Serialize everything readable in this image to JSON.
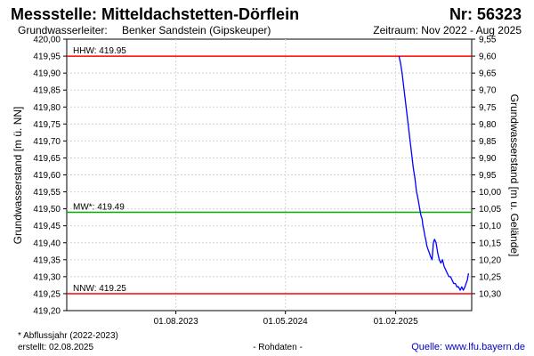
{
  "header": {
    "title": "Messstelle: Mitteldachstetten-Dörflein",
    "number": "Nr: 56323",
    "aquifer_label": "Grundwasserleiter:",
    "aquifer_value": "Benker Sandstein (Gipskeuper)",
    "period": "Zeitraum: Nov 2022 - Aug 2025"
  },
  "footer": {
    "note": "* Abflussjahr (2022-2023)",
    "created": "erstellt:  02.08.2025",
    "raw": "- Rohdaten -",
    "source": "Quelle: www.lfu.bayern.de"
  },
  "chart_data": {
    "type": "line",
    "ylabel": "Grundwasserstand [m ü. NN]",
    "y2label": "Grundwasserstand [m u. Gelände]",
    "x_range": [
      "2022-11-01",
      "2025-08-10"
    ],
    "ylim": [
      419.2,
      420.0
    ],
    "y2lim": [
      10.35,
      9.55
    ],
    "y_ticks": [
      "420,00",
      "419,95",
      "419,90",
      "419,85",
      "419,80",
      "419,75",
      "419,70",
      "419,65",
      "419,60",
      "419,55",
      "419,50",
      "419,45",
      "419,40",
      "419,35",
      "419,30",
      "419,25",
      "419,20"
    ],
    "y2_ticks": [
      "9,55",
      "9,60",
      "9,65",
      "9,70",
      "9,75",
      "9,80",
      "9,85",
      "9,90",
      "9,95",
      "10,00",
      "10,05",
      "10,10",
      "10,15",
      "10,20",
      "10,25",
      "10,30"
    ],
    "x_ticks": [
      {
        "date": "2023-08-01",
        "label": "01.08.2023"
      },
      {
        "date": "2024-05-01",
        "label": "01.05.2024"
      },
      {
        "date": "2025-02-01",
        "label": "01.02.2025"
      }
    ],
    "grid": true,
    "reference_lines": [
      {
        "name": "HHW",
        "label": "HHW: 419.95",
        "value": 419.95,
        "color": "#ff0000"
      },
      {
        "name": "MW",
        "label": "MW*: 419.49",
        "value": 419.49,
        "color": "#00aa00"
      },
      {
        "name": "NNW",
        "label": "NNW: 419.25",
        "value": 419.25,
        "color": "#ff0000"
      }
    ],
    "series": [
      {
        "color": "#0000ff",
        "x": [
          "2025-02-09",
          "2025-02-13",
          "2025-02-17",
          "2025-02-21",
          "2025-02-25",
          "2025-03-01",
          "2025-03-05",
          "2025-03-09",
          "2025-03-13",
          "2025-03-17",
          "2025-03-21",
          "2025-03-23",
          "2025-03-25",
          "2025-03-27",
          "2025-03-30",
          "2025-04-02",
          "2025-04-05",
          "2025-04-08",
          "2025-04-10",
          "2025-04-12",
          "2025-04-15",
          "2025-04-17",
          "2025-04-20",
          "2025-04-23",
          "2025-04-26",
          "2025-04-29",
          "2025-05-03",
          "2025-05-06",
          "2025-05-09",
          "2025-05-13",
          "2025-05-17",
          "2025-05-21",
          "2025-05-25",
          "2025-05-29",
          "2025-06-02",
          "2025-06-06",
          "2025-06-10",
          "2025-06-14",
          "2025-06-18",
          "2025-06-22",
          "2025-06-26",
          "2025-06-30",
          "2025-07-04",
          "2025-07-08",
          "2025-07-12",
          "2025-07-16",
          "2025-07-20",
          "2025-07-24",
          "2025-07-27",
          "2025-07-30",
          "2025-08-02"
        ],
        "y": [
          419.95,
          419.93,
          419.9,
          419.86,
          419.82,
          419.78,
          419.74,
          419.7,
          419.66,
          419.62,
          419.59,
          419.57,
          419.55,
          419.54,
          419.52,
          419.5,
          419.48,
          419.47,
          419.45,
          419.44,
          419.42,
          419.41,
          419.39,
          419.38,
          419.37,
          419.36,
          419.35,
          419.4,
          419.41,
          419.4,
          419.37,
          419.35,
          419.34,
          419.35,
          419.33,
          419.32,
          419.31,
          419.3,
          419.3,
          419.29,
          419.28,
          419.28,
          419.27,
          419.27,
          419.26,
          419.27,
          419.26,
          419.27,
          419.28,
          419.29,
          419.31
        ]
      }
    ]
  }
}
